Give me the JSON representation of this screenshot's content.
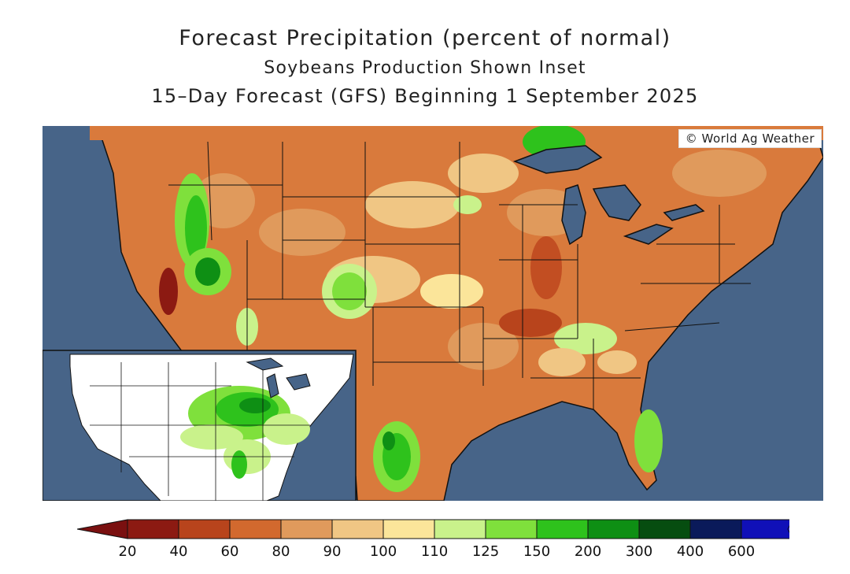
{
  "header": {
    "title": "Forecast Precipitation (percent of normal)",
    "subtitle": "Soybeans Production Shown Inset",
    "period": "15–Day Forecast (GFS) Beginning 1 September 2025"
  },
  "credit": "© World Ag Weather",
  "legend": {
    "bins": [
      {
        "label": "20",
        "color": "#8c1a12"
      },
      {
        "label": "40",
        "color": "#b8441c"
      },
      {
        "label": "60",
        "color": "#d2692e"
      },
      {
        "label": "80",
        "color": "#e09a5c"
      },
      {
        "label": "90",
        "color": "#f0c684"
      },
      {
        "label": "100",
        "color": "#fbe59a"
      },
      {
        "label": "110",
        "color": "#c9f28b"
      },
      {
        "label": "125",
        "color": "#7fe03c"
      },
      {
        "label": "150",
        "color": "#2ec21c"
      },
      {
        "label": "200",
        "color": "#0e8f14"
      },
      {
        "label": "300",
        "color": "#064d10"
      },
      {
        "label": "400",
        "color": "#0a1a5a"
      },
      {
        "label": "600",
        "color": "#1010b8"
      }
    ],
    "low_color": "#7a1010",
    "high_color": "#1e1eff"
  },
  "colors": {
    "ocean": "#476488",
    "land_base": "#d97a3c",
    "inset_land": "#ffffff"
  }
}
